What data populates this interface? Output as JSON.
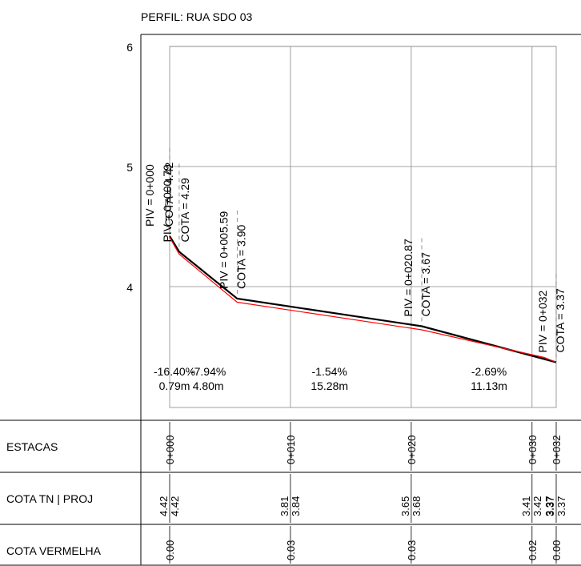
{
  "chart_data": {
    "type": "line",
    "title": "PERFIL: RUA SDO 03",
    "xlim": [
      0,
      32
    ],
    "ylim": [
      3.3,
      6
    ],
    "y_ticks": [
      "4",
      "5",
      "6"
    ],
    "grid": true,
    "series": [
      {
        "x": [
          0,
          0.79,
          5.59,
          20.87,
          32
        ],
        "y": [
          4.42,
          4.29,
          3.9,
          3.67,
          3.37
        ],
        "color": "#000000"
      },
      {
        "x": [
          0,
          0.79,
          5.59,
          20.87,
          31,
          32
        ],
        "y": [
          4.41,
          4.27,
          3.87,
          3.64,
          3.41,
          3.37
        ],
        "color": "#ff0000"
      }
    ],
    "pivots": [
      {
        "x": 0,
        "piv": "PIV = 0+000",
        "cota": "COTA = 4.42"
      },
      {
        "x": 0.79,
        "piv": "PIV = 0+000.79",
        "cota": "COTA = 4.29"
      },
      {
        "x": 5.59,
        "piv": "PIV = 0+005.59",
        "cota": "COTA = 3.90"
      },
      {
        "x": 20.87,
        "piv": "PIV = 0+020.87",
        "cota": "COTA = 3.67"
      },
      {
        "x": 32,
        "piv": "PIV = 0+032",
        "cota": "COTA = 3.37"
      }
    ],
    "grades": [
      {
        "x": 0.4,
        "pct": "-16.40%",
        "len": "0.79m"
      },
      {
        "x": 3.19,
        "pct": "-7.94%",
        "len": "4.80m"
      },
      {
        "x": 13.23,
        "pct": "-1.54%",
        "len": "15.28m"
      },
      {
        "x": 26.44,
        "pct": "-2.69%",
        "len": "11.13m"
      }
    ],
    "table": {
      "rows": [
        "ESTACAS",
        "COTA TN | PROJ",
        "COTA VERMELHA"
      ],
      "columns": [
        {
          "x": 0,
          "estaca": "0+000",
          "tn": "4.42",
          "proj": "4.42",
          "vermelha": "0.00"
        },
        {
          "x": 10,
          "estaca": "0+010",
          "tn": "3.81",
          "proj": "3.84",
          "vermelha": "0.03"
        },
        {
          "x": 20,
          "estaca": "0+020",
          "tn": "3.65",
          "proj": "3.68",
          "vermelha": "0.03"
        },
        {
          "x": 30,
          "estaca": "0+030",
          "tn": "3.41",
          "proj": "3.42",
          "vermelha": "0.02"
        },
        {
          "x": 32,
          "estaca": "0+032",
          "tn": "3.37",
          "proj": "3.37",
          "vermelha": "0.00"
        }
      ],
      "extra_proj": {
        "x": 31,
        "value": "3.37"
      }
    }
  }
}
